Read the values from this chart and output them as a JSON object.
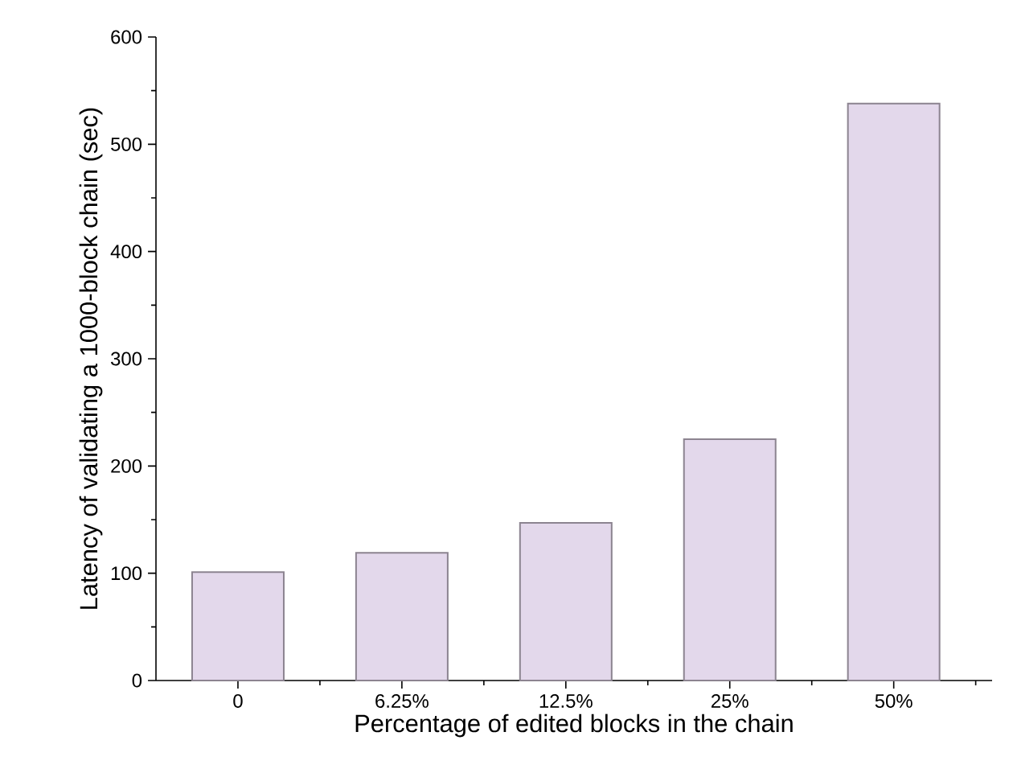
{
  "chart_data": {
    "type": "bar",
    "xlabel": "Percentage of edited blocks in the chain",
    "ylabel": "Latency of validating a 1000-block chain (sec)",
    "categories": [
      "0",
      "6.25%",
      "12.5%",
      "25%",
      "50%"
    ],
    "values": [
      101,
      119,
      147,
      225,
      538
    ],
    "color": "#e3d8eb",
    "ylim": [
      0,
      600
    ],
    "yticks": [
      0,
      100,
      200,
      300,
      400,
      500,
      600
    ]
  }
}
